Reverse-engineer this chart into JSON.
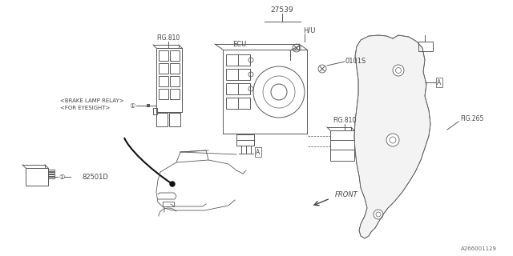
{
  "bg_color": "#ffffff",
  "lc": "#5a5a5a",
  "fig_width": 6.4,
  "fig_height": 3.2,
  "dpi": 100,
  "labels": {
    "part_27539": "27539",
    "part_hu": "H/U",
    "part_ecu": "ECU",
    "part_0101s": "0101S",
    "fig810_top": "FIG.810",
    "fig810_mid": "FIG.810",
    "fig265": "FIG.265",
    "brake_relay": "<BRAKE LAMP RELAY>",
    "for_eyesight": "<FOR EYESIGHT>",
    "part_82501d": "82501D",
    "label_front": "FRONT",
    "ref_num": "A266001129"
  }
}
